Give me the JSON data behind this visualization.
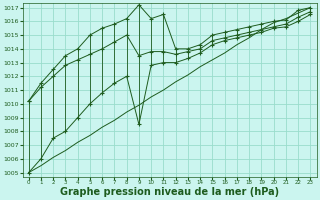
{
  "x": [
    0,
    1,
    2,
    3,
    4,
    5,
    6,
    7,
    8,
    9,
    10,
    11,
    12,
    13,
    14,
    15,
    16,
    17,
    18,
    19,
    20,
    21,
    22,
    23
  ],
  "line_max": [
    1010.2,
    1011.5,
    1012.5,
    1013.5,
    1014.0,
    1015.0,
    1015.5,
    1015.8,
    1016.2,
    1017.2,
    1016.2,
    1016.5,
    1014.0,
    1014.0,
    1014.3,
    1015.0,
    1015.2,
    1015.4,
    1015.6,
    1015.8,
    1016.0,
    1016.1,
    1016.8,
    1017.0
  ],
  "line_mean": [
    1010.2,
    1011.2,
    1012.0,
    1012.8,
    1013.2,
    1013.6,
    1014.0,
    1014.5,
    1015.0,
    1013.5,
    1013.8,
    1013.8,
    1013.6,
    1013.8,
    1014.0,
    1014.6,
    1014.8,
    1015.0,
    1015.2,
    1015.4,
    1015.6,
    1015.8,
    1016.3,
    1016.7
  ],
  "line_min": [
    1005.0,
    1006.0,
    1007.5,
    1008.0,
    1009.0,
    1010.0,
    1010.8,
    1011.5,
    1012.0,
    1008.5,
    1012.8,
    1013.0,
    1013.0,
    1013.3,
    1013.7,
    1014.3,
    1014.6,
    1014.8,
    1015.0,
    1015.2,
    1015.5,
    1015.6,
    1016.0,
    1016.5
  ],
  "line_trend": [
    1005.0,
    1005.5,
    1006.1,
    1006.6,
    1007.2,
    1007.7,
    1008.3,
    1008.8,
    1009.4,
    1009.9,
    1010.5,
    1011.0,
    1011.6,
    1012.1,
    1012.7,
    1013.2,
    1013.7,
    1014.3,
    1014.8,
    1015.4,
    1015.9,
    1016.2,
    1016.6,
    1017.0
  ],
  "ylim_min": 1005,
  "ylim_max": 1017,
  "bg_color": "#cbf5ef",
  "grid_color": "#99ddcc",
  "line_color": "#1e5c1e",
  "xlabel": "Graphe pression niveau de la mer (hPa)",
  "xlabel_fontsize": 7.0
}
